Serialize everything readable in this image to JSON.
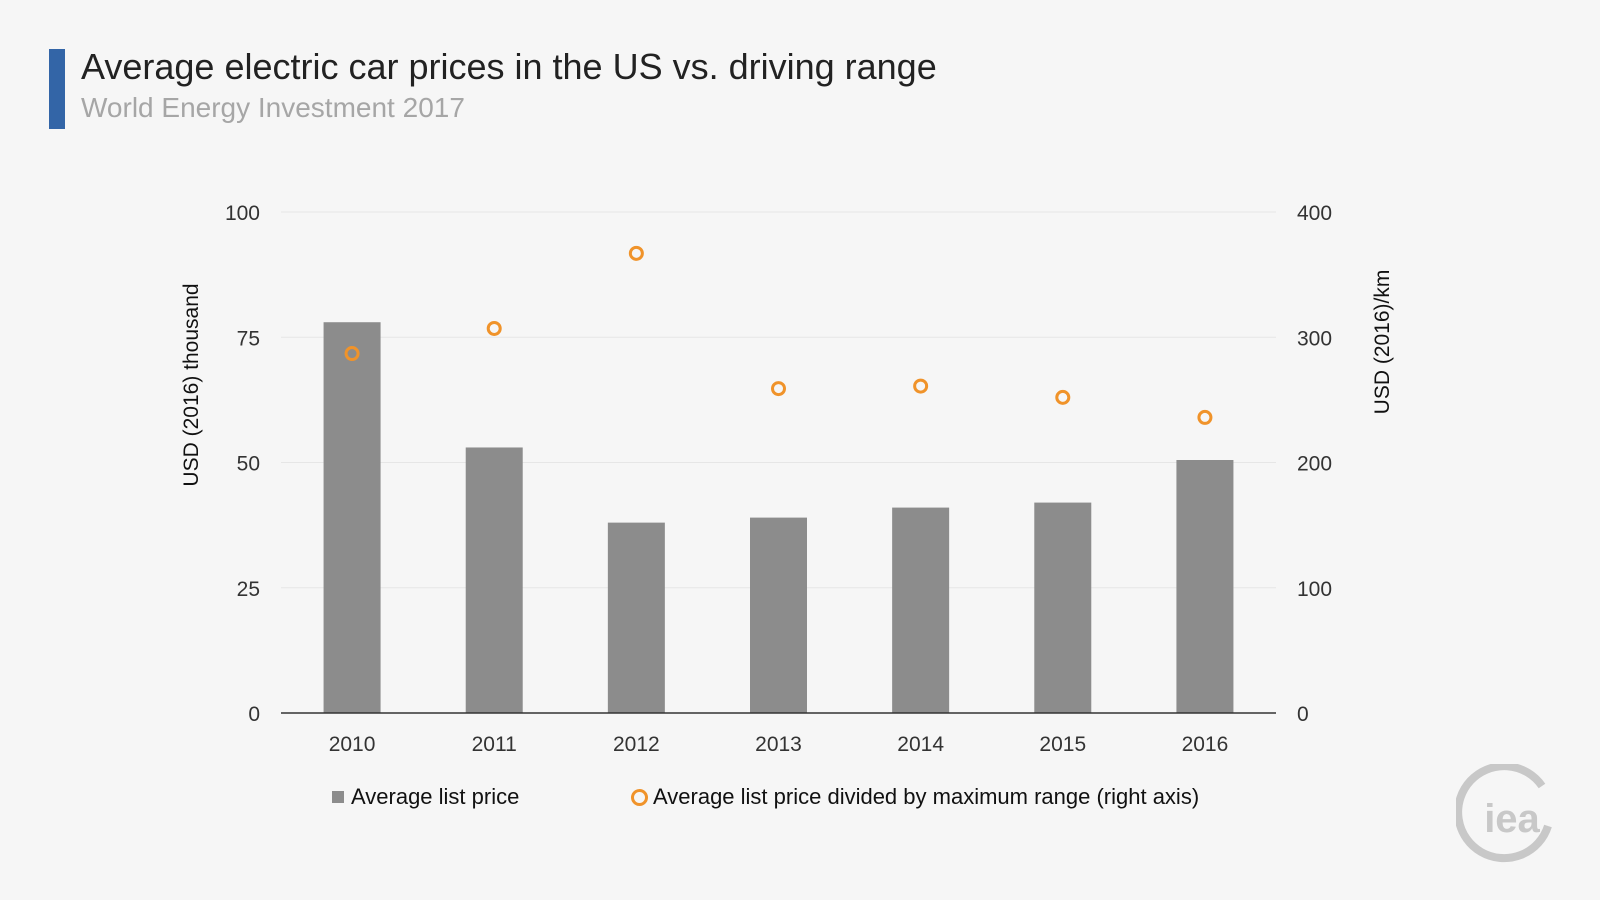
{
  "header": {
    "title": "Average electric car prices in the US vs. driving range",
    "subtitle": "World Energy Investment 2017"
  },
  "colors": {
    "accent": "#3365a7",
    "bar": "#8c8c8c",
    "dot": "#f0932a",
    "grid": "#e6e6e6",
    "logo": "#c8c8c8"
  },
  "logo": {
    "text": "iea",
    "icon": "iea-logo-icon"
  },
  "chart_data": {
    "type": "bar",
    "categories": [
      "2010",
      "2011",
      "2012",
      "2013",
      "2014",
      "2015",
      "2016"
    ],
    "series": [
      {
        "name": "Average list price",
        "type": "bar",
        "axis": "left",
        "values": [
          78,
          53,
          38,
          39,
          41,
          42,
          50.5
        ]
      },
      {
        "name": "Average list price divided by maximum range (right axis)",
        "type": "scatter",
        "axis": "right",
        "values": [
          287,
          307,
          367,
          259,
          261,
          252,
          236
        ]
      }
    ],
    "ylabel": "USD (2016) thousand",
    "y2label": "USD (2016)/km",
    "ylim": [
      0,
      100
    ],
    "y2lim": [
      0,
      400
    ],
    "yticks": [
      "0",
      "25",
      "50",
      "75",
      "100"
    ],
    "y2ticks": [
      "0",
      "100",
      "200",
      "300",
      "400"
    ],
    "grid": true,
    "legend": "bottom"
  }
}
